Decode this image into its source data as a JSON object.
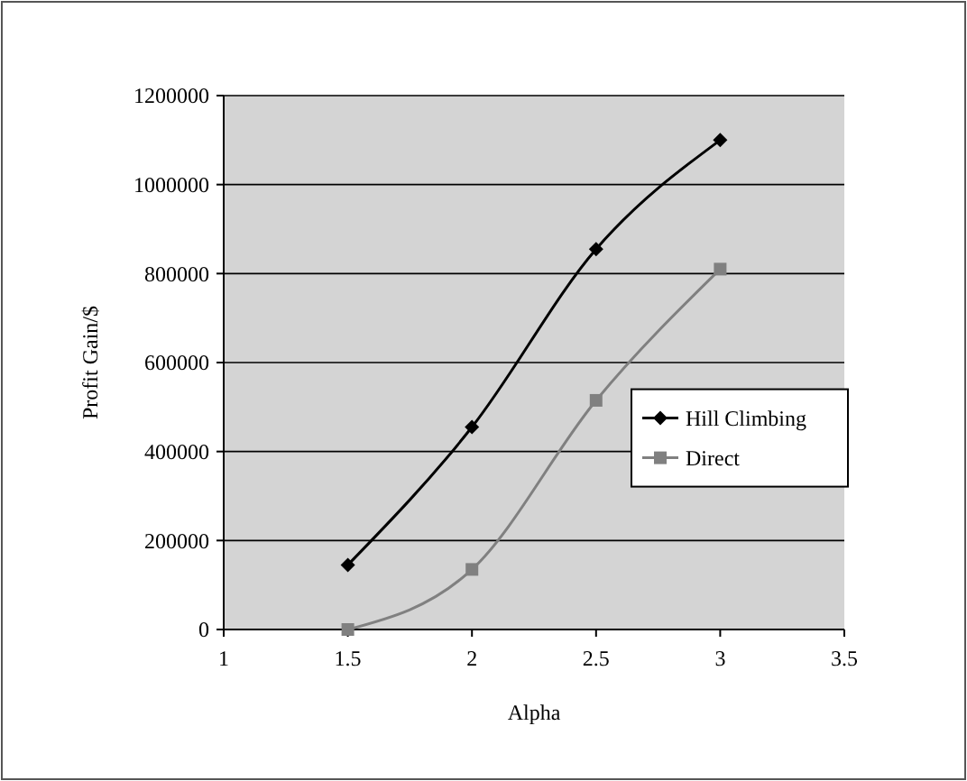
{
  "chart_data": {
    "type": "line",
    "xlabel": "Alpha",
    "ylabel": "Profit Gain/$",
    "x": [
      1.5,
      2,
      2.5,
      3
    ],
    "series": [
      {
        "name": "Hill Climbing",
        "color": "#000000",
        "marker": "diamond",
        "values": [
          145000,
          455000,
          855000,
          1100000
        ]
      },
      {
        "name": "Direct",
        "color": "#808080",
        "marker": "square",
        "values": [
          0,
          135000,
          515000,
          810000
        ]
      }
    ],
    "xlim": [
      1,
      3.5
    ],
    "xticks": [
      1,
      1.5,
      2,
      2.5,
      3,
      3.5
    ],
    "ylim": [
      0,
      1200000
    ],
    "yticks": [
      0,
      200000,
      400000,
      600000,
      800000,
      1000000,
      1200000
    ],
    "grid": "y",
    "legend": "right"
  }
}
